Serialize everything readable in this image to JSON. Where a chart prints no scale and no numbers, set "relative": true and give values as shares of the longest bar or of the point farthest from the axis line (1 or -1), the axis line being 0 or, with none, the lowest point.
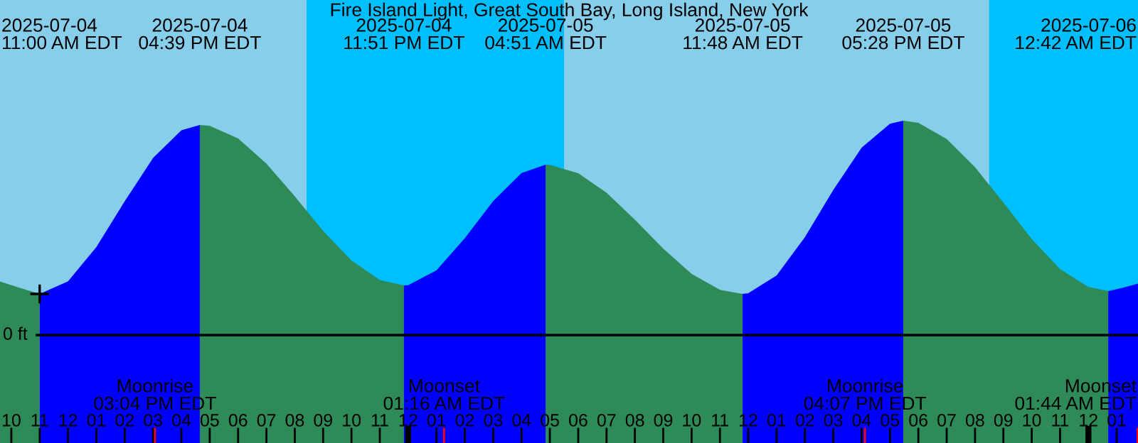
{
  "chart_data": {
    "type": "area",
    "title": "Fire Island Light, Great South Bay, Long Island, New York",
    "relative": true,
    "xlim": [
      "2025-07-04T09:36",
      "2025-07-06T01:45"
    ],
    "xticks": [
      {
        "value": "2025-07-04T10:00",
        "label": "10"
      },
      {
        "value": "2025-07-04T11:00",
        "label": "11"
      },
      {
        "value": "2025-07-04T12:00",
        "label": "12"
      },
      {
        "value": "2025-07-04T13:00",
        "label": "01"
      },
      {
        "value": "2025-07-04T14:00",
        "label": "02"
      },
      {
        "value": "2025-07-04T15:00",
        "label": "03"
      },
      {
        "value": "2025-07-04T16:00",
        "label": "04"
      },
      {
        "value": "2025-07-04T17:00",
        "label": "05"
      },
      {
        "value": "2025-07-04T18:00",
        "label": "06"
      },
      {
        "value": "2025-07-04T19:00",
        "label": "07"
      },
      {
        "value": "2025-07-04T20:00",
        "label": "08"
      },
      {
        "value": "2025-07-04T21:00",
        "label": "09"
      },
      {
        "value": "2025-07-04T22:00",
        "label": "10"
      },
      {
        "value": "2025-07-04T23:00",
        "label": "11"
      },
      {
        "value": "2025-07-05T00:00",
        "label": "12"
      },
      {
        "value": "2025-07-05T01:00",
        "label": "01"
      },
      {
        "value": "2025-07-05T02:00",
        "label": "02"
      },
      {
        "value": "2025-07-05T03:00",
        "label": "03"
      },
      {
        "value": "2025-07-05T04:00",
        "label": "04"
      },
      {
        "value": "2025-07-05T05:00",
        "label": "05"
      },
      {
        "value": "2025-07-05T06:00",
        "label": "06"
      },
      {
        "value": "2025-07-05T07:00",
        "label": "07"
      },
      {
        "value": "2025-07-05T08:00",
        "label": "08"
      },
      {
        "value": "2025-07-05T09:00",
        "label": "09"
      },
      {
        "value": "2025-07-05T10:00",
        "label": "10"
      },
      {
        "value": "2025-07-05T11:00",
        "label": "11"
      },
      {
        "value": "2025-07-05T12:00",
        "label": "12"
      },
      {
        "value": "2025-07-05T13:00",
        "label": "01"
      },
      {
        "value": "2025-07-05T14:00",
        "label": "02"
      },
      {
        "value": "2025-07-05T15:00",
        "label": "03"
      },
      {
        "value": "2025-07-05T16:00",
        "label": "04"
      },
      {
        "value": "2025-07-05T17:00",
        "label": "05"
      },
      {
        "value": "2025-07-05T18:00",
        "label": "06"
      },
      {
        "value": "2025-07-05T19:00",
        "label": "07"
      },
      {
        "value": "2025-07-05T20:00",
        "label": "08"
      },
      {
        "value": "2025-07-05T21:00",
        "label": "09"
      },
      {
        "value": "2025-07-05T22:00",
        "label": "10"
      },
      {
        "value": "2025-07-05T23:00",
        "label": "11"
      },
      {
        "value": "2025-07-06T00:00",
        "label": "12"
      },
      {
        "value": "2025-07-06T01:00",
        "label": "01"
      }
    ],
    "tick_labels": "x",
    "series": [
      {
        "color": "#2e8b57",
        "x": [
          "2025-07-04T09:36",
          "2025-07-04T10:18",
          "2025-07-04T11:00",
          "2025-07-04T12:00",
          "2025-07-04T16:39",
          "2025-07-04T17:00",
          "2025-07-04T18:00",
          "2025-07-04T19:00",
          "2025-07-04T20:00",
          "2025-07-04T21:00",
          "2025-07-04T22:00",
          "2025-07-04T23:00",
          "2025-07-04T23:51",
          "2025-07-05T00:30",
          "2025-07-05T04:51",
          "2025-07-05T05:00",
          "2025-07-05T06:00",
          "2025-07-05T07:00",
          "2025-07-05T08:00",
          "2025-07-05T09:00",
          "2025-07-05T10:00",
          "2025-07-05T11:00",
          "2025-07-05T11:48",
          "2025-07-05T12:30",
          "2025-07-05T17:28",
          "2025-07-05T18:00",
          "2025-07-05T19:00",
          "2025-07-05T20:00",
          "2025-07-05T21:00",
          "2025-07-05T22:00",
          "2025-07-05T23:00",
          "2025-07-06T00:00",
          "2025-07-06T00:42"
        ],
        "values": [
          0.25,
          0.22,
          0.192,
          null,
          0.98,
          0.976,
          0.917,
          0.8,
          0.647,
          0.486,
          0.348,
          0.257,
          0.232,
          null,
          0.795,
          0.794,
          0.755,
          0.664,
          0.538,
          0.403,
          0.286,
          0.211,
          0.192,
          null,
          1.0,
          0.99,
          0.915,
          0.783,
          0.618,
          0.448,
          0.308,
          0.224,
          0.205
        ]
      },
      {
        "color": "#0000ff",
        "x": [
          "2025-07-04T11:00",
          "2025-07-04T12:00",
          "2025-07-04T13:00",
          "2025-07-04T14:00",
          "2025-07-04T15:00",
          "2025-07-04T16:00",
          "2025-07-04T16:39",
          "2025-07-04T17:30",
          "2025-07-04T23:51",
          "2025-07-05T00:00",
          "2025-07-05T01:00",
          "2025-07-05T02:00",
          "2025-07-05T03:00",
          "2025-07-05T04:00",
          "2025-07-05T04:51",
          "2025-07-05T06:00",
          "2025-07-05T11:48",
          "2025-07-05T12:00",
          "2025-07-05T13:00",
          "2025-07-05T14:00",
          "2025-07-05T15:00",
          "2025-07-05T16:00",
          "2025-07-05T17:00",
          "2025-07-05T17:28",
          "2025-07-05T18:00",
          "2025-07-06T00:42",
          "2025-07-06T01:12",
          "2025-07-06T01:45"
        ],
        "values": [
          0.192,
          0.251,
          0.411,
          0.624,
          0.826,
          0.955,
          0.98,
          null,
          0.232,
          0.233,
          0.302,
          0.452,
          0.625,
          0.756,
          0.795,
          null,
          0.192,
          0.195,
          0.278,
          0.457,
          0.677,
          0.874,
          0.986,
          1.0,
          null,
          0.205,
          0.22,
          0.24
        ]
      },
      {
        "type": "scatter",
        "color": "#000000",
        "marker": "cross",
        "x": [
          "2025-07-04T11:00"
        ],
        "values": [
          0.192
        ]
      }
    ],
    "bands": [
      {
        "axis": "x",
        "from": "2025-07-04T20:25",
        "to": "2025-07-05T05:30",
        "color": "#00bfff"
      },
      {
        "axis": "x",
        "from": "2025-07-05T20:30",
        "to": "2025-07-06T01:45",
        "color": "#00bfff"
      }
    ],
    "ref_lines": [
      {
        "axis": "y",
        "value": 0,
        "label": "0 ft",
        "color": "#000000"
      },
      {
        "axis": "x",
        "value": "2025-07-04T15:04",
        "label": "Moonrise\n03:04 PM EDT",
        "color": "#ff0000"
      },
      {
        "axis": "x",
        "value": "2025-07-05T01:16",
        "label": "Moonset\n01:16 AM EDT",
        "color": "#ff0000"
      },
      {
        "axis": "x",
        "value": "2025-07-05T16:07",
        "label": "Moonrise\n04:07 PM EDT",
        "color": "#ff0000"
      },
      {
        "axis": "x",
        "value": "2025-07-06T01:44",
        "label": "Moonset\n01:44 AM EDT",
        "color": "#ff0000"
      }
    ],
    "annotations": [
      "2025-07-04\n11:00 AM EDT",
      "2025-07-04\n04:39 PM EDT",
      "2025-07-04\n11:51 PM EDT",
      "2025-07-05\n04:51 AM EDT",
      "2025-07-05\n11:48 AM EDT",
      "2025-07-05\n05:28 PM EDT",
      "2025-07-06\n12:42 AM EDT"
    ]
  }
}
